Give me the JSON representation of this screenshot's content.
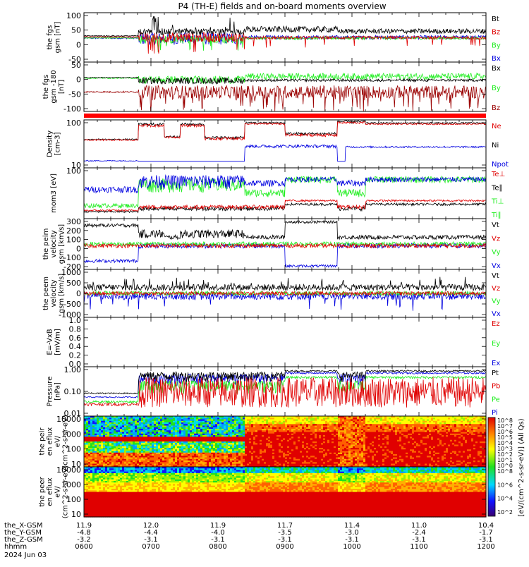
{
  "title": "P4 (TH-E) fields and on-board moments overview",
  "colors": {
    "black": "#000000",
    "red": "#e00000",
    "dark_red": "#9a0000",
    "green": "#22ee22",
    "blue": "#0000e0"
  },
  "x_labels": {
    "rows": [
      {
        "label": "the_X-GSM",
        "values": [
          "11.9",
          "12.0",
          "11.9",
          "11.7",
          "11.4",
          "11.0",
          "10.4"
        ]
      },
      {
        "label": "the_Y-GSM",
        "values": [
          "-4.8",
          "-4.4",
          "-4.0",
          "-3.5",
          "-3.0",
          "-2.4",
          "-1.7"
        ]
      },
      {
        "label": "the_Z-GSM",
        "values": [
          "-3.2",
          "-3.1",
          "-3.1",
          "-3.1",
          "-3.1",
          "-3.1",
          "-3.1"
        ]
      },
      {
        "label": "hhmm",
        "values": [
          "0600",
          "0700",
          "0800",
          "0900",
          "1000",
          "1100",
          "1200"
        ]
      }
    ],
    "date": "2024 Jun 03"
  },
  "colorbar_label": "[eV/(cm^2-s-sr-eV)] (All Qs)",
  "chart_data": [
    {
      "type": "line",
      "ylabel": "the fgs gsm [nT]",
      "ylim": [
        -100,
        100
      ],
      "yticks": [
        "100",
        "50",
        "0",
        "-50"
      ],
      "legend": [
        {
          "name": "Bt",
          "color": "black"
        },
        {
          "name": "Bz",
          "color": "red"
        },
        {
          "name": "By",
          "color": "green"
        },
        {
          "name": "Bx",
          "color": "blue"
        }
      ]
    },
    {
      "type": "line",
      "ylabel": "the fgs gsm -180 [nT]",
      "ylim": [
        -130,
        60
      ],
      "yticks": [
        "50",
        "0",
        "-50",
        "-100"
      ],
      "legend": [
        {
          "name": "Bx",
          "color": "black"
        },
        {
          "name": "By",
          "color": "green"
        },
        {
          "name": "Bz",
          "color": "dark_red"
        }
      ]
    },
    {
      "type": "line",
      "ylabel": "Density [cm-3]",
      "scale": "log",
      "yticks": [
        "100",
        "10"
      ],
      "legend": [
        {
          "name": "Ne",
          "color": "red"
        },
        {
          "name": "Ni",
          "color": "black"
        },
        {
          "name": "Npot",
          "color": "blue"
        }
      ]
    },
    {
      "type": "line",
      "ylabel": "mom3 [eV]",
      "scale": "log",
      "yticks": [
        "100"
      ],
      "legend": [
        {
          "name": "Te⊥",
          "color": "red"
        },
        {
          "name": "Te∥",
          "color": "black"
        },
        {
          "name": "Ti⊥",
          "color": "green"
        },
        {
          "name": "Ti∥",
          "color": "green"
        }
      ]
    },
    {
      "type": "line",
      "ylabel": "the peim velocity gsm [km/s]",
      "ylim": [
        -300,
        300
      ],
      "yticks": [
        "300",
        "200",
        "100",
        "0",
        "-100",
        "-200"
      ],
      "legend": [
        {
          "name": "Vt",
          "color": "black"
        },
        {
          "name": "Vz",
          "color": "red"
        },
        {
          "name": "Vy",
          "color": "green"
        },
        {
          "name": "Vx",
          "color": "blue"
        }
      ]
    },
    {
      "type": "line",
      "ylabel": "the peem velocity gsm [km/s]",
      "ylim": [
        -1300,
        1300
      ],
      "yticks": [
        "1000",
        "500",
        "0",
        "-500",
        "-1000"
      ],
      "legend": [
        {
          "name": "Vt",
          "color": "black"
        },
        {
          "name": "Vz",
          "color": "red"
        },
        {
          "name": "Vy",
          "color": "green"
        },
        {
          "name": "Vx",
          "color": "blue"
        }
      ]
    },
    {
      "type": "line",
      "ylabel": "E=-VxB [mV/m]",
      "ylim": [
        0,
        1
      ],
      "yticks": [
        "1.0",
        "0.8",
        "0.6",
        "0.4",
        "0.2",
        "0.0"
      ],
      "legend": [
        {
          "name": "Ez",
          "color": "red"
        },
        {
          "name": "Ey",
          "color": "green"
        },
        {
          "name": "Ex",
          "color": "blue"
        }
      ]
    },
    {
      "type": "line",
      "ylabel": "Pressure [nPa]",
      "scale": "log",
      "yticks": [
        "1.00",
        "0.10",
        "0.01"
      ],
      "legend": [
        {
          "name": "Pt",
          "color": "black"
        },
        {
          "name": "Pb",
          "color": "red"
        },
        {
          "name": "Pe",
          "color": "green"
        },
        {
          "name": "Pi",
          "color": "blue"
        }
      ]
    },
    {
      "type": "heatmap",
      "ylabel": "the peir en eflux eV/ (cm^2-s-sr-eV)",
      "scale": "log",
      "yticks": [
        "10000",
        "1000",
        "100",
        "10"
      ],
      "colorbar_ticks": [
        "10^8",
        "10^7",
        "10^6",
        "10^5",
        "10^4",
        "10^3",
        "10^2",
        "10^1",
        "10^0"
      ]
    },
    {
      "type": "heatmap",
      "ylabel": "the peer en eflux eV/ (cm^2-s-sr-eV)",
      "scale": "log",
      "yticks": [
        "10000",
        "1000",
        "100",
        "10"
      ],
      "colorbar_ticks": [
        "10^8",
        "10^6",
        "10^4",
        "10^2"
      ]
    }
  ]
}
